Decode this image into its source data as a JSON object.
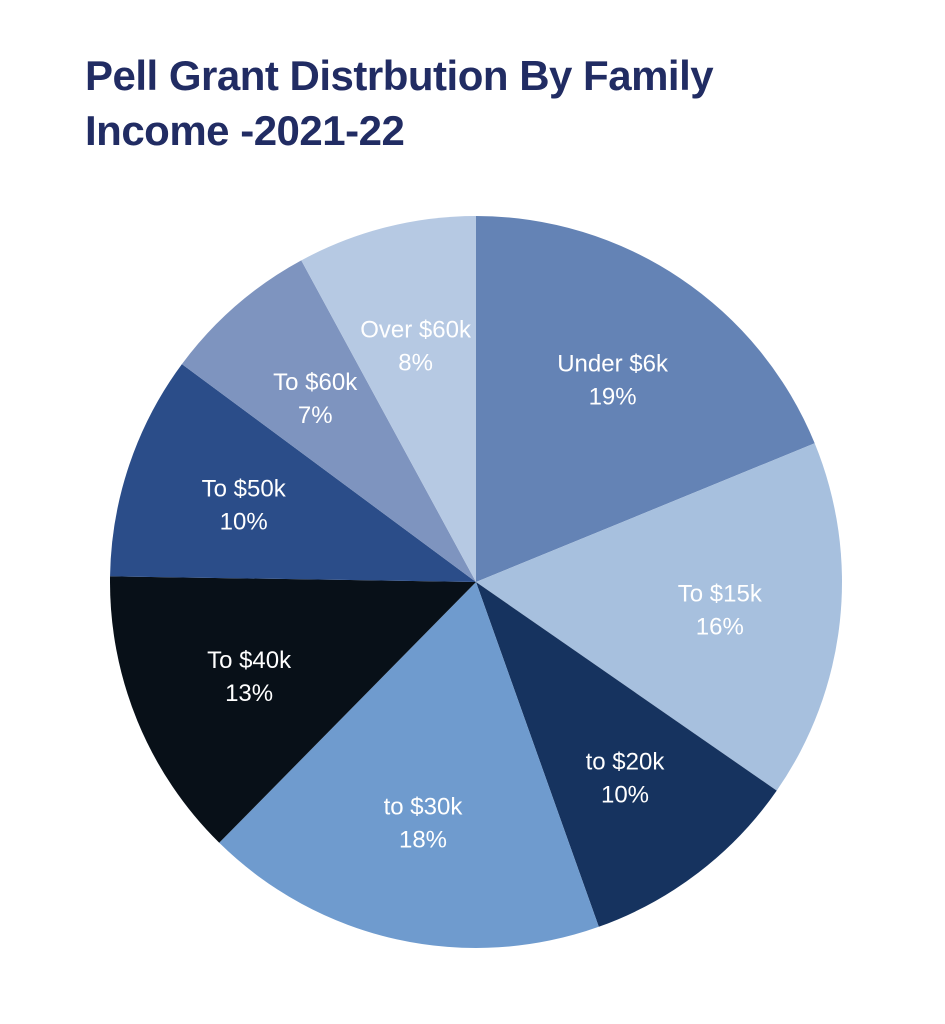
{
  "title": "Pell Grant Distrbution By Family Income -2021-22",
  "title_color": "#212c63",
  "background_color": "#ffffff",
  "chart_data": {
    "type": "pie",
    "title": "Pell Grant Distrbution By Family Income -2021-22",
    "unit": "%",
    "start_angle_deg": 0,
    "direction": "clockwise",
    "legend": "none",
    "labels_inside_slices": true,
    "label_color": "#ffffff",
    "slices": [
      {
        "label": "Under $6k",
        "value": 19,
        "display": "19%",
        "color": "#6483b5"
      },
      {
        "label": "To $15k",
        "value": 16,
        "display": "16%",
        "color": "#a7c0de"
      },
      {
        "label": "to $20k",
        "value": 10,
        "display": "10%",
        "color": "#16335f"
      },
      {
        "label": "to $30k",
        "value": 18,
        "display": "18%",
        "color": "#6f9bce"
      },
      {
        "label": "To $40k",
        "value": 13,
        "display": "13%",
        "color": "#081018"
      },
      {
        "label": "To $50k",
        "value": 10,
        "display": "10%",
        "color": "#2b4d89"
      },
      {
        "label": "To $60k",
        "value": 7,
        "display": "7%",
        "color": "#7e94bf"
      },
      {
        "label": "Over $60k",
        "value": 8,
        "display": "8%",
        "color": "#b6c9e3"
      }
    ]
  }
}
